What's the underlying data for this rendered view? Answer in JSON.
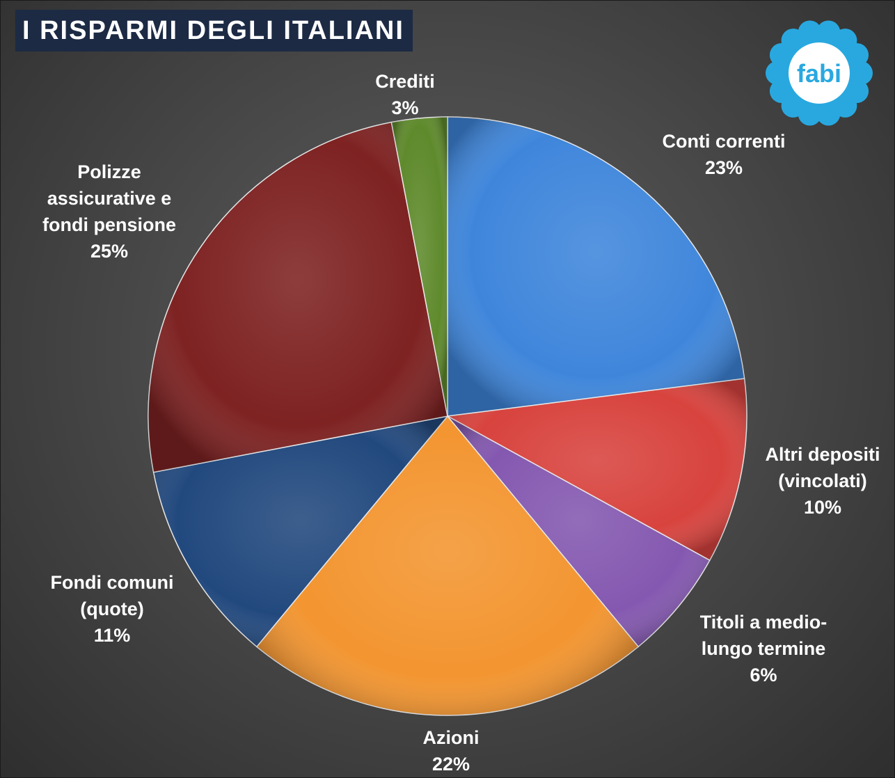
{
  "title": "I RISPARMI DEGLI ITALIANI",
  "logo_text": "fabi",
  "chart_data": {
    "type": "pie",
    "title": "I RISPARMI DEGLI ITALIANI",
    "slices": [
      {
        "label": "Conti correnti",
        "value": 23,
        "display": "23%",
        "color": "#3f86db"
      },
      {
        "label": "Altri depositi (vincolati)",
        "value": 10,
        "display": "10%",
        "color": "#d8433e"
      },
      {
        "label": "Titoli a medio-lungo termine",
        "value": 6,
        "display": "6%",
        "color": "#8458b0"
      },
      {
        "label": "Azioni",
        "value": 22,
        "display": "22%",
        "color": "#f39530"
      },
      {
        "label": "Fondi comuni (quote)",
        "value": 11,
        "display": "11%",
        "color": "#22497e"
      },
      {
        "label": "Polizze assicurative e fondi pensione",
        "value": 25,
        "display": "25%",
        "color": "#7e2222"
      },
      {
        "label": "Crediti",
        "value": 3,
        "display": "3%",
        "color": "#5f8a2c"
      }
    ],
    "label_lines": [
      [
        "Conti correnti"
      ],
      [
        "Altri depositi",
        "(vincolati)"
      ],
      [
        "Titoli a medio-",
        "lungo termine"
      ],
      [
        "Azioni"
      ],
      [
        "Fondi comuni",
        "(quote)"
      ],
      [
        "Polizze",
        "assicurative e",
        "fondi pensione"
      ],
      [
        "Crediti"
      ]
    ],
    "legend": "none"
  }
}
